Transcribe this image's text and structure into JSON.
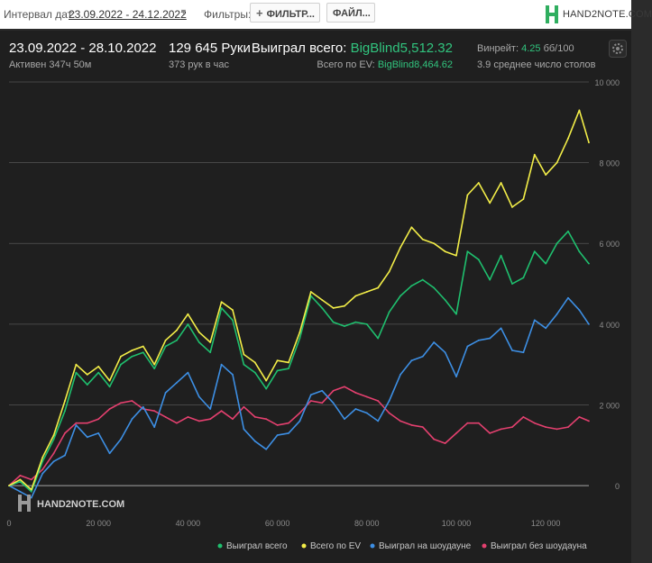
{
  "toolbar": {
    "interval_label": "Интервал дат:",
    "date_range": "23.09.2022 - 24.12.2022",
    "filters_label": "Фильтры:",
    "filter_button": "ФИЛЬТР...",
    "file_button": "ФАЙЛ...",
    "logo_text": "HAND2NOTE.COM"
  },
  "summary": {
    "period": "23.09.2022 - 28.10.2022",
    "active": "Активен 347ч 50м",
    "hands": "129 645 Руки",
    "hands_per_hour": "373 рук в час",
    "won_label": "Выиграл всего:",
    "won_value": "BigBlind5,512.32",
    "ev_label": "Всего по EV:",
    "ev_value": "BigBlind8,464.62",
    "winrate_label": "Винрейт:",
    "winrate_value": "4.25",
    "winrate_unit": "бб/100",
    "tables": "3.9 среднее число столов"
  },
  "watermark": "HAND2NOTE.COM",
  "colors": {
    "total": "#1fbf6e",
    "ev": "#f3ee48",
    "showdown": "#3d8fe4",
    "non_showdown": "#e4406f",
    "grid": "#555555"
  },
  "chart_data": {
    "type": "line",
    "xlim": [
      0,
      129645
    ],
    "ylim": [
      -600,
      10000
    ],
    "x_ticks": [
      0,
      20000,
      40000,
      60000,
      80000,
      100000,
      120000
    ],
    "x_tick_labels": [
      "0",
      "20 000",
      "40 000",
      "60 000",
      "80 000",
      "100 000",
      "120 000"
    ],
    "y_ticks": [
      0,
      2000,
      4000,
      6000,
      8000,
      10000
    ],
    "y_tick_labels": [
      "0",
      "2 000",
      "4 000",
      "6 000",
      "8 000",
      "10 000"
    ],
    "grid": true,
    "legend": "bottom-right",
    "x": [
      0,
      2500,
      5000,
      7500,
      10000,
      12500,
      15000,
      17500,
      20000,
      22500,
      25000,
      27500,
      30000,
      32500,
      35000,
      37500,
      40000,
      42500,
      45000,
      47500,
      50000,
      52500,
      55000,
      57500,
      60000,
      62500,
      65000,
      67500,
      70000,
      72500,
      75000,
      77500,
      80000,
      82500,
      85000,
      87500,
      90000,
      92500,
      95000,
      97500,
      100000,
      102500,
      105000,
      107500,
      110000,
      112500,
      115000,
      117500,
      120000,
      122500,
      125000,
      127500,
      129645
    ],
    "series": [
      {
        "key": "total",
        "name": "Выиграл всего",
        "values": [
          0,
          100,
          -150,
          600,
          1150,
          1850,
          2800,
          2500,
          2800,
          2450,
          3000,
          3200,
          3300,
          2900,
          3450,
          3600,
          4000,
          3550,
          3300,
          4400,
          4100,
          3000,
          2800,
          2400,
          2850,
          2900,
          3650,
          4700,
          4400,
          4050,
          3950,
          4050,
          4000,
          3650,
          4300,
          4700,
          4950,
          5100,
          4900,
          4600,
          4250,
          5800,
          5600,
          5100,
          5700,
          5000,
          5150,
          5800,
          5500,
          6000,
          6300,
          5800,
          5500
        ]
      },
      {
        "key": "ev",
        "name": "Всего по EV",
        "values": [
          0,
          150,
          -100,
          700,
          1250,
          2100,
          3000,
          2750,
          2950,
          2600,
          3200,
          3350,
          3450,
          3000,
          3600,
          3850,
          4250,
          3800,
          3550,
          4550,
          4350,
          3250,
          3050,
          2600,
          3100,
          3050,
          3800,
          4800,
          4600,
          4400,
          4450,
          4700,
          4800,
          4900,
          5300,
          5900,
          6400,
          6100,
          6000,
          5800,
          5700,
          7200,
          7500,
          7000,
          7500,
          6900,
          7100,
          8200,
          7700,
          8000,
          8600,
          9300,
          8500
        ]
      },
      {
        "key": "showdown",
        "name": "Выиграл на шоудауне",
        "values": [
          0,
          -150,
          -300,
          300,
          600,
          750,
          1500,
          1200,
          1300,
          800,
          1150,
          1650,
          1950,
          1450,
          2300,
          2550,
          2800,
          2200,
          1900,
          3000,
          2750,
          1400,
          1100,
          900,
          1250,
          1300,
          1600,
          2250,
          2350,
          2050,
          1650,
          1900,
          1800,
          1600,
          2100,
          2750,
          3100,
          3200,
          3550,
          3300,
          2700,
          3450,
          3600,
          3650,
          3900,
          3350,
          3300,
          4100,
          3900,
          4250,
          4650,
          4350,
          4000
        ]
      },
      {
        "key": "non_showdown",
        "name": "Выиграл без шоудауна",
        "values": [
          0,
          250,
          150,
          400,
          800,
          1300,
          1550,
          1550,
          1650,
          1900,
          2050,
          2100,
          1900,
          1850,
          1700,
          1550,
          1700,
          1600,
          1650,
          1850,
          1650,
          1950,
          1700,
          1650,
          1500,
          1550,
          1800,
          2100,
          2050,
          2350,
          2450,
          2300,
          2200,
          2100,
          1800,
          1600,
          1500,
          1450,
          1150,
          1050,
          1300,
          1550,
          1550,
          1300,
          1400,
          1450,
          1700,
          1550,
          1450,
          1400,
          1450,
          1700,
          1600
        ]
      }
    ]
  }
}
